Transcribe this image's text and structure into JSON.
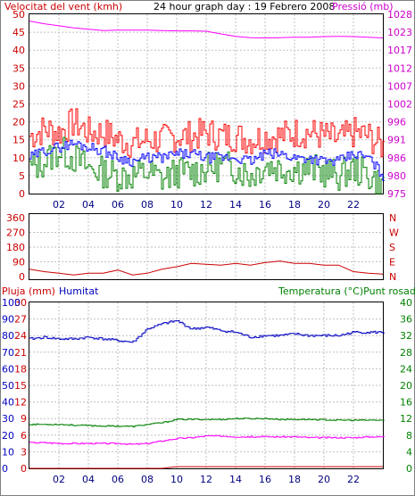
{
  "chart_data": [
    {
      "type": "line",
      "title": "24 hour graph day : 19 Febrero 2008",
      "y_left_label": "Velocitat del vent (kmh)",
      "y_right_label": "Pressió (mb)",
      "ylim_left": [
        0,
        50
      ],
      "ylim_right": [
        975,
        1028
      ],
      "left_ticks": [
        "0",
        "5",
        "10",
        "15",
        "20",
        "25",
        "30",
        "35",
        "40",
        "45",
        "50"
      ],
      "right_ticks": [
        "975",
        "980",
        "986",
        "991",
        "996",
        "1002",
        "1007",
        "1012",
        "1017",
        "1023",
        "1028"
      ],
      "x_ticks": [
        "02",
        "04",
        "06",
        "08",
        "10",
        "12",
        "14",
        "16",
        "18",
        "20",
        "22"
      ],
      "grid": true,
      "colors": {
        "gust": "#ff0000",
        "avg": "#0000ff",
        "min": "#008000",
        "pressure": "#ff00ff"
      },
      "x_hours": [
        0,
        1,
        2,
        3,
        4,
        5,
        6,
        7,
        8,
        9,
        10,
        11,
        12,
        13,
        14,
        15,
        16,
        17,
        18,
        19,
        20,
        21,
        22,
        23,
        24
      ],
      "pressure": [
        1026,
        1025.2,
        1024.6,
        1024,
        1023.6,
        1023.2,
        1023.3,
        1023.3,
        1023.3,
        1023.2,
        1023.1,
        1023.1,
        1023,
        1022.2,
        1021.5,
        1021.1,
        1021,
        1021.1,
        1021.2,
        1021.2,
        1021.4,
        1021.5,
        1021.4,
        1021.2,
        1021
      ],
      "gust": [
        16,
        18,
        17,
        20,
        17,
        17,
        15,
        14,
        15,
        15,
        16,
        16,
        17,
        16,
        16,
        15,
        16,
        16,
        17,
        17,
        16,
        15,
        17,
        16,
        13
      ],
      "avg": [
        10,
        12,
        13,
        14,
        13,
        12,
        10,
        9,
        10,
        10,
        11,
        11,
        10,
        10,
        10,
        9,
        11,
        11,
        10,
        10,
        9,
        9,
        11,
        10,
        5
      ],
      "min": [
        7,
        9,
        12,
        10,
        7,
        6,
        5,
        5,
        6,
        4,
        6,
        6,
        7,
        8,
        7,
        5,
        8,
        7,
        7,
        7,
        6,
        5,
        7,
        5,
        2
      ]
    },
    {
      "type": "line",
      "y_left_ticks": [
        "360",
        "270",
        "180",
        "90",
        "0"
      ],
      "y_right_ticks": [
        "N",
        "W",
        "S",
        "E",
        "N"
      ],
      "ylim": [
        0,
        360
      ],
      "grid": true,
      "color": "#cc0000",
      "x_hours": [
        0,
        1,
        2,
        3,
        4,
        5,
        6,
        7,
        8,
        9,
        10,
        11,
        12,
        13,
        14,
        15,
        16,
        17,
        18,
        19,
        20,
        21,
        22,
        23,
        24
      ],
      "direction": [
        45,
        30,
        20,
        10,
        20,
        20,
        40,
        10,
        20,
        45,
        60,
        80,
        75,
        70,
        80,
        70,
        85,
        95,
        80,
        80,
        70,
        70,
        30,
        20,
        15
      ]
    },
    {
      "type": "line",
      "labels": {
        "rain": "Pluja (mm)",
        "humidity": "Humitat",
        "temp_dew": "Temperatura (°C)Punt rosada"
      },
      "humidity_ticks": [
        "0",
        "10",
        "20",
        "30",
        "40",
        "50",
        "60",
        "70",
        "80",
        "90",
        "100"
      ],
      "rain_ticks": [
        "0",
        "3",
        "6",
        "9",
        "12",
        "15",
        "18",
        "21",
        "24",
        "27",
        "30"
      ],
      "temp_ticks": [
        "0",
        "4",
        "8",
        "12",
        "16",
        "20",
        "24",
        "28",
        "32",
        "36",
        "40"
      ],
      "x_ticks": [
        "02",
        "04",
        "06",
        "08",
        "10",
        "12",
        "14",
        "16",
        "18",
        "20",
        "22"
      ],
      "grid": true,
      "colors": {
        "humidity": "#0000c0",
        "temperature": "#008000",
        "dewpoint": "#ff00ff",
        "rain": "#cc0000"
      },
      "x_hours": [
        0,
        1,
        2,
        3,
        4,
        5,
        6,
        7,
        8,
        9,
        10,
        11,
        12,
        13,
        14,
        15,
        16,
        17,
        18,
        19,
        20,
        21,
        22,
        23,
        24
      ],
      "humidity": [
        78,
        79,
        78,
        78,
        79,
        78,
        77,
        76,
        84,
        87,
        89,
        84,
        85,
        83,
        82,
        79,
        80,
        80,
        81,
        80,
        80,
        80,
        82,
        82,
        82
      ],
      "temperature": [
        10.6,
        10.6,
        10.6,
        10.4,
        10.3,
        10.2,
        10.2,
        10.1,
        10.6,
        11,
        11.8,
        11.8,
        11.8,
        11.8,
        12,
        12,
        12,
        11.8,
        11.8,
        11.8,
        11.7,
        11.6,
        11.6,
        11.6,
        11.6
      ],
      "dewpoint": [
        6.2,
        6.2,
        6,
        6,
        6,
        6,
        6,
        5.8,
        6,
        6.6,
        7.2,
        7.4,
        7.8,
        7.8,
        7.6,
        7.6,
        7.6,
        7.6,
        7.6,
        7.4,
        7.4,
        7.4,
        7.4,
        7.6,
        7.6
      ],
      "rain": [
        0,
        0,
        0,
        0,
        0,
        0,
        0,
        0,
        0,
        0,
        0.3,
        0.3,
        0.3,
        0.3,
        0.3,
        0.3,
        0.3,
        0.3,
        0.3,
        0.3,
        0.3,
        0.3,
        0.3,
        0.3,
        0.3
      ]
    }
  ]
}
